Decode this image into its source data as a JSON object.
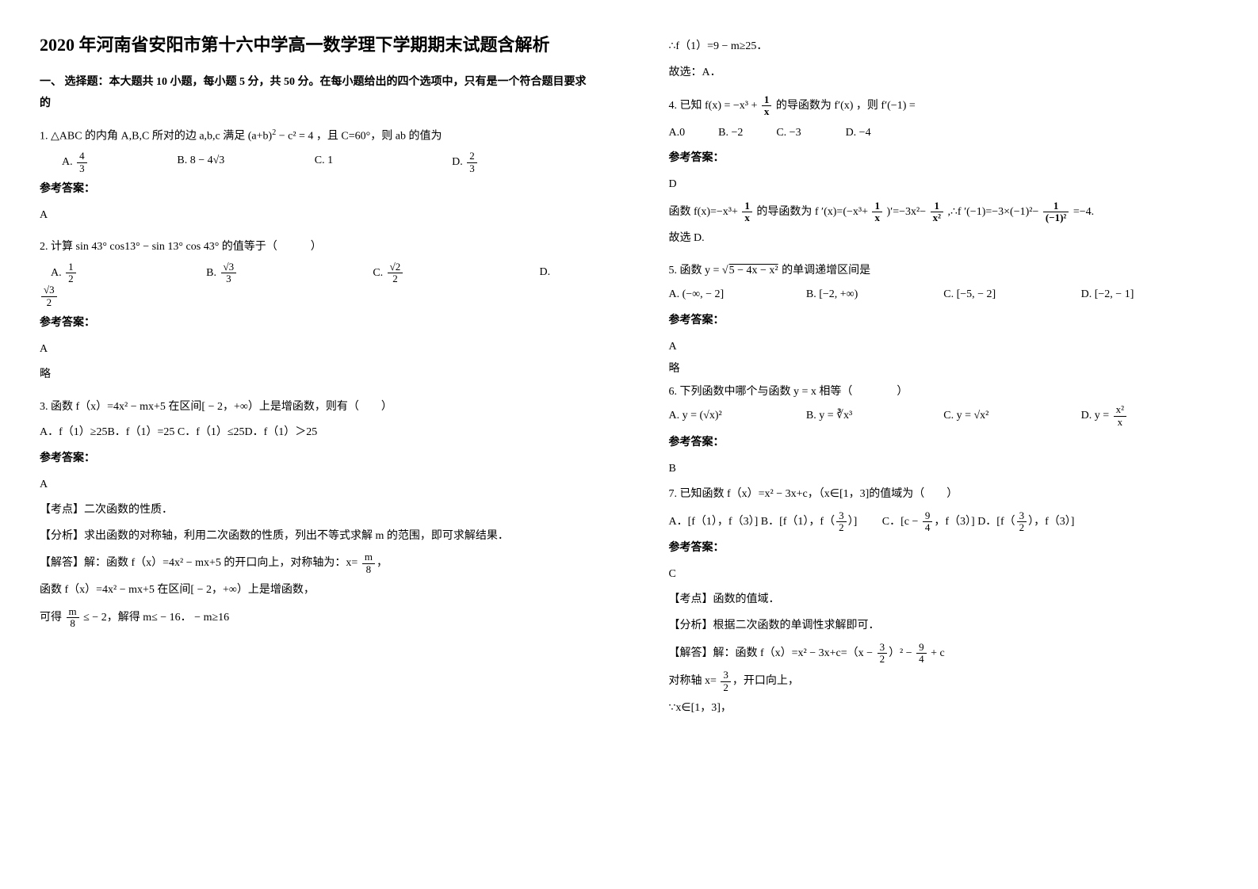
{
  "title": "2020 年河南省安阳市第十六中学高一数学理下学期期末试题含解析",
  "section_one_head": "一、 选择题：本大题共 10 小题，每小题 5 分，共 50 分。在每小题给出的四个选项中，只有是一个符合题目要求的",
  "answer_label": "参考答案：",
  "left": {
    "q1": {
      "stem_pre": "1. △ABC 的内角 A,B,C 所对的边 a,b,c 满足 (a+b)",
      "stem_post": "− c² = 4 ，且 C=60°，则 ab 的值为",
      "optA_n": "4",
      "optA_d": "3",
      "optB": "B.  8 − 4√3",
      "optC": "C.   1",
      "optD_pre": "D. ",
      "optD_n": "2",
      "optD_d": "3",
      "answer": "A"
    },
    "q2": {
      "stem": "2. 计算 sin 43° cos13° − sin 13° cos 43° 的值等于（　　　）",
      "optA_n": "1",
      "optA_d": "2",
      "optB_pre": "B.  ",
      "optB_n": "√3",
      "optB_d": "3",
      "optC_pre": "C.  ",
      "optC_n": "√2",
      "optC_d": "2",
      "optD_label": "D.",
      "optD2_n": "√3",
      "optD2_d": "2",
      "answer": "A",
      "note": "略"
    },
    "q3": {
      "stem": "3. 函数 f（x）=4x² − mx+5 在区间[ − 2，+∞）上是增函数，则有（　　）",
      "opts": "A．f（1）≥25B．f（1）=25 C．f（1）≤25D．f（1）＞25",
      "answer": "A",
      "kd": "【考点】二次函数的性质．",
      "fx": "【分析】求出函数的对称轴，利用二次函数的性质，列出不等式求解 m 的范围，即可求解结果．",
      "jd1_pre": "【解答】解：函数 f（x）=4x² − mx+5 的开口向上，对称轴为：x= ",
      "jd1_n": "m",
      "jd1_d": "8",
      "jd1_post": "，",
      "jd2": "函数 f（x）=4x² − mx+5 在区间[ − 2，+∞）上是增函数，",
      "jd3_pre": "可得 ",
      "jd3_n": "m",
      "jd3_d": "8",
      "jd3_mid": " ≤ − 2",
      "jd3_post": "，解得 m≤ − 16． − m≥16"
    }
  },
  "right": {
    "q3_cont1": "∴f（1）=9 − m≥25．",
    "q3_cont2": "故选：A．",
    "q4": {
      "stem_pre": "4. 已知 f(x) = −x³ + ",
      "stem_n": "1",
      "stem_d": "x",
      "stem_mid": " 的导函数为 f′(x) ，则 f′(−1) =",
      "opts": "A.0　　　B. −2　　　C. −3　　　　D. −4",
      "answer": "D",
      "exp_pre": "函数 f(x)=−x³+ ",
      "exp_n1": "1",
      "exp_d1": "x",
      "exp_mid1": " 的导函数为 f ′(x)=(−x³+ ",
      "exp_n2": "1",
      "exp_d2": "x",
      "exp_mid2": " )′=−3x²− ",
      "exp_n3": "1",
      "exp_d3": "x²",
      "exp_mid3": " ,∴f ′(−1)=−3×(−1)²− ",
      "exp_n4": "1",
      "exp_d4": "(−1)²",
      "exp_post": " =−4.",
      "exp_end": "故选 D."
    },
    "q5": {
      "stem_pre": "5. 函数 y = ",
      "stem_rad": "5 − 4x − x²",
      "stem_post": " 的单调递增区间是",
      "optA": "A.  (−∞, − 2]",
      "optB": "B.  [−2, +∞)",
      "optC": "C.  [−5, − 2]",
      "optD": "D.   [−2, − 1]",
      "answer": "A",
      "note": "略"
    },
    "q6": {
      "stem": "6. 下列函数中哪个与函数 y = x 相等（　　　　）",
      "optA": "A.  y = (√x)²",
      "optB": "B.  y = ∛x³",
      "optC": "C.  y = √x²",
      "optD_pre": "D.  y = ",
      "optD_n": "x²",
      "optD_d": "x",
      "answer": "B"
    },
    "q7": {
      "stem": "7. 已知函数 f（x）=x² − 3x+c，（x∈[1，3]的值域为（　　）",
      "optA": "A．[f（1），f（3）] B．[f（1），f（",
      "optA_n": "3",
      "optA_d": "2",
      "optA_post": "）]",
      "optC_pre": "C．[c − ",
      "optC_n": "9",
      "optC_d": "4",
      "optC_mid": "，f（3）] D．[f（",
      "optC_n2": "3",
      "optC_d2": "2",
      "optC_post": "），f（3）]",
      "answer": "C",
      "kd": "【考点】函数的值域．",
      "fx": "【分析】根据二次函数的单调性求解即可．",
      "jd1_pre": "【解答】解：函数 f（x）=x² − 3x+c=（x − ",
      "jd1_n": "3",
      "jd1_d": "2",
      "jd1_mid": "）²  − ",
      "jd1_n2": "9",
      "jd1_d2": "4",
      "jd1_post": " + c",
      "jd2_pre": "对称轴 x= ",
      "jd2_n": "3",
      "jd2_d": "2",
      "jd2_post": "，开口向上，",
      "jd3": "∵x∈[1，3]，"
    }
  }
}
